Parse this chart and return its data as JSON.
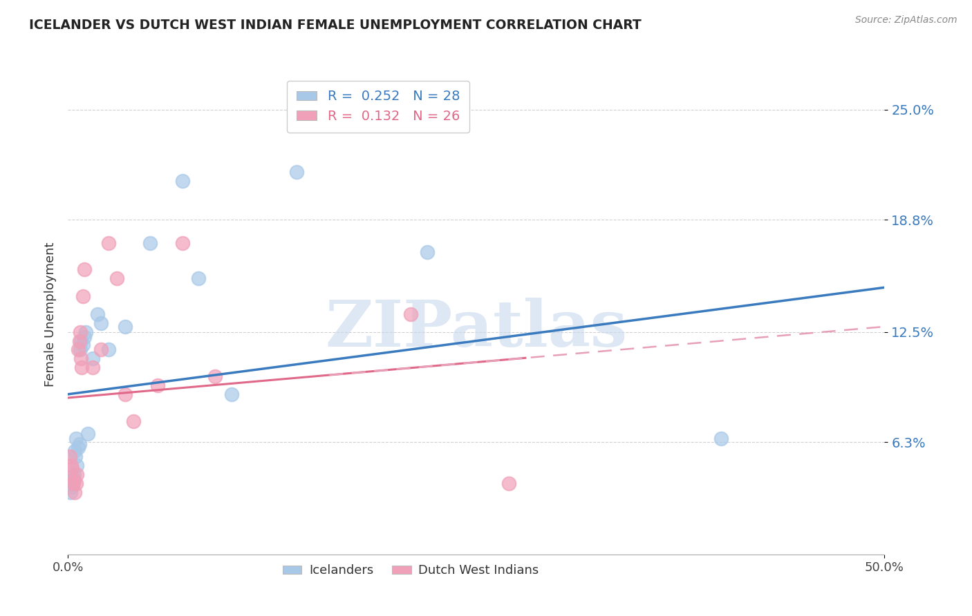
{
  "title": "ICELANDER VS DUTCH WEST INDIAN FEMALE UNEMPLOYMENT CORRELATION CHART",
  "source": "Source: ZipAtlas.com",
  "ylabel": "Female Unemployment",
  "xlim": [
    0.0,
    50.0
  ],
  "ylim": [
    0.0,
    27.0
  ],
  "ytick_positions": [
    6.3,
    12.5,
    18.8,
    25.0
  ],
  "ytick_labels": [
    "6.3%",
    "12.5%",
    "18.8%",
    "25.0%"
  ],
  "icelander_color": "#a8c8e8",
  "dutch_color": "#f0a0b8",
  "icelander_line_color": "#3a7abf",
  "dutch_line_color": "#e06888",
  "dutch_line_color_dashed": "#e8a0b8",
  "R_icelander": 0.252,
  "N_icelander": 28,
  "R_dutch": 0.132,
  "N_dutch": 26,
  "watermark": "ZIPatlas",
  "icelander_x": [
    0.15,
    0.25,
    0.3,
    0.35,
    0.4,
    0.45,
    0.5,
    0.55,
    0.6,
    0.7,
    0.75,
    0.8,
    0.9,
    1.0,
    1.1,
    1.2,
    1.5,
    1.8,
    2.0,
    2.5,
    3.5,
    5.0,
    7.0,
    8.0,
    10.0,
    14.0,
    22.0,
    40.0
  ],
  "icelander_y": [
    3.5,
    3.8,
    4.2,
    4.5,
    5.8,
    5.5,
    6.5,
    5.0,
    6.0,
    6.2,
    11.5,
    12.0,
    11.8,
    12.2,
    12.5,
    6.8,
    11.0,
    13.5,
    13.0,
    11.5,
    12.8,
    17.5,
    21.0,
    15.5,
    9.0,
    21.5,
    17.0,
    6.5
  ],
  "dutch_x": [
    0.1,
    0.2,
    0.25,
    0.3,
    0.35,
    0.4,
    0.5,
    0.55,
    0.6,
    0.7,
    0.75,
    0.8,
    0.85,
    0.9,
    1.0,
    1.5,
    2.0,
    2.5,
    3.0,
    3.5,
    4.0,
    5.5,
    7.0,
    9.0,
    21.0,
    27.0
  ],
  "dutch_y": [
    5.5,
    5.0,
    4.8,
    4.0,
    4.2,
    3.5,
    4.0,
    4.5,
    11.5,
    12.0,
    12.5,
    11.0,
    10.5,
    14.5,
    16.0,
    10.5,
    11.5,
    17.5,
    15.5,
    9.0,
    7.5,
    9.5,
    17.5,
    10.0,
    13.5,
    4.0
  ],
  "background_color": "#ffffff",
  "grid_color": "#d0d0d0",
  "ice_line_intercept": 9.0,
  "ice_line_slope": 0.12,
  "dutch_line_intercept": 8.8,
  "dutch_line_slope": 0.08,
  "dutch_solid_end_x": 28.0
}
